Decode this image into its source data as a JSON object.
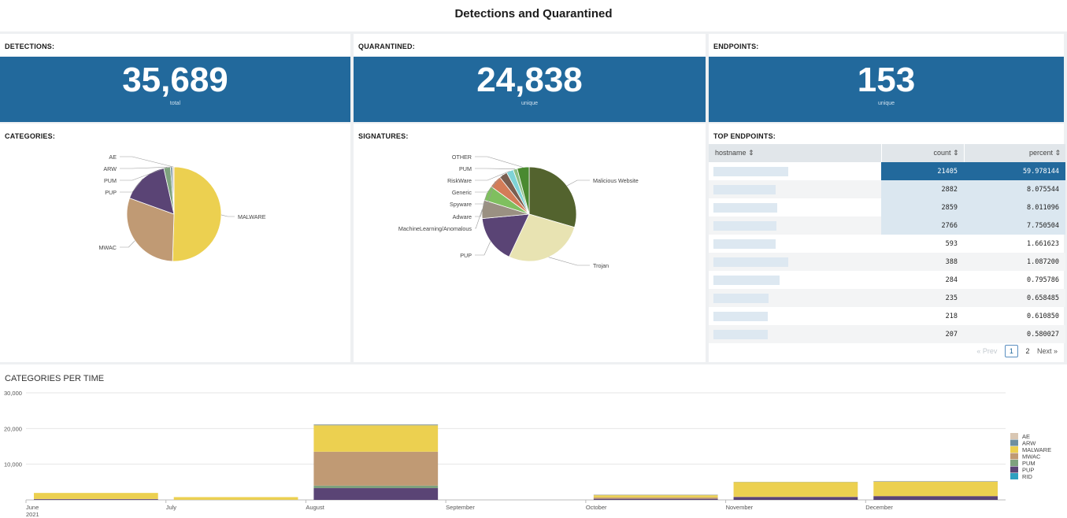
{
  "dashboard": {
    "title": "Detections and Quarantined"
  },
  "kpis": [
    {
      "label": "DETECTIONS:",
      "value": "35,689",
      "sub": "total"
    },
    {
      "label": "QUARANTINED:",
      "value": "24,838",
      "sub": "unique"
    },
    {
      "label": "ENDPOINTS:",
      "value": "153",
      "sub": "unique"
    }
  ],
  "categories_panel": {
    "title": "CATEGORIES:"
  },
  "signatures_panel": {
    "title": "SIGNATURES:"
  },
  "top_endpoints": {
    "title": "TOP ENDPOINTS:",
    "columns": [
      "hostname ⇕",
      "count ⇕",
      "percent ⇕"
    ],
    "rows": [
      {
        "count": "21405",
        "percent": "59.978144"
      },
      {
        "count": "2882",
        "percent": "8.075544"
      },
      {
        "count": "2859",
        "percent": "8.011096"
      },
      {
        "count": "2766",
        "percent": "7.750504"
      },
      {
        "count": "593",
        "percent": "1.661623"
      },
      {
        "count": "388",
        "percent": "1.087200"
      },
      {
        "count": "284",
        "percent": "0.795786"
      },
      {
        "count": "235",
        "percent": "0.658485"
      },
      {
        "count": "218",
        "percent": "0.610850"
      },
      {
        "count": "207",
        "percent": "0.580027"
      }
    ],
    "pager": {
      "prev": "« Prev",
      "page1": "1",
      "page2": "2",
      "next": "Next »"
    }
  },
  "bottom_panel": {
    "title": "CATEGORIES PER TIME"
  },
  "colors": {
    "kpi_blue": "#22699c",
    "AE": "#d9c7b3",
    "ARW": "#6f8fa0",
    "MALWARE": "#ecd050",
    "MWAC": "#c09a74",
    "PUM": "#7ea27e",
    "PUP": "#5a4475",
    "RID": "#2ea0c0"
  },
  "chart_data": [
    {
      "type": "pie",
      "title": "CATEGORIES:",
      "slices": [
        {
          "label": "MALWARE",
          "value": 50.5,
          "color": "#ecd050"
        },
        {
          "label": "MWAC",
          "value": 30.0,
          "color": "#c09a74"
        },
        {
          "label": "PUP",
          "value": 16.0,
          "color": "#5a4475"
        },
        {
          "label": "PUM",
          "value": 2.3,
          "color": "#7ea27e"
        },
        {
          "label": "ARW",
          "value": 0.7,
          "color": "#6f8fa0"
        },
        {
          "label": "AE",
          "value": 0.5,
          "color": "#d9c7b3"
        }
      ]
    },
    {
      "type": "pie",
      "title": "SIGNATURES:",
      "slices": [
        {
          "label": "Malicious Website",
          "value": 29.5,
          "color": "#53632e"
        },
        {
          "label": "Trojan",
          "value": 27.5,
          "color": "#e8e3b2"
        },
        {
          "label": "PUP",
          "value": 16.5,
          "color": "#5a4475"
        },
        {
          "label": "MachineLearning/Anomalous",
          "value": 6.3,
          "color": "#9a9082"
        },
        {
          "label": "Adware",
          "value": 5.2,
          "color": "#7fbf5f"
        },
        {
          "label": "Spyware",
          "value": 4.3,
          "color": "#d47c58"
        },
        {
          "label": "Generic",
          "value": 2.8,
          "color": "#7a5e50"
        },
        {
          "label": "RiskWare",
          "value": 2.4,
          "color": "#7fd3d6"
        },
        {
          "label": "PUM",
          "value": 1.4,
          "color": "#8dbf86"
        },
        {
          "label": "OTHER",
          "value": 4.1,
          "color": "#4a8a30"
        }
      ]
    },
    {
      "type": "bar",
      "stacked": true,
      "title": "CATEGORIES PER TIME",
      "categories": [
        "June 2021",
        "July",
        "August",
        "September",
        "October",
        "November",
        "December"
      ],
      "x_tick_labels": [
        "June",
        "July",
        "August",
        "September",
        "October",
        "November",
        "December"
      ],
      "x_year_label": "2021",
      "ylim": [
        0,
        30000
      ],
      "y_ticks": [
        10000,
        20000,
        30000
      ],
      "y_tick_labels": [
        "10,000",
        "20,000",
        "30,000"
      ],
      "series": [
        {
          "name": "PUP",
          "color": "#5a4475",
          "values": [
            200,
            0,
            3300,
            0,
            300,
            800,
            1000
          ]
        },
        {
          "name": "PUM",
          "color": "#7ea27e",
          "values": [
            0,
            0,
            700,
            0,
            0,
            0,
            0
          ]
        },
        {
          "name": "MWAC",
          "color": "#c09a74",
          "values": [
            50,
            30,
            9500,
            0,
            400,
            100,
            100
          ]
        },
        {
          "name": "MALWARE",
          "color": "#ecd050",
          "values": [
            1700,
            750,
            7400,
            0,
            600,
            4100,
            4000
          ]
        },
        {
          "name": "ARW",
          "color": "#6f8fa0",
          "values": [
            0,
            0,
            200,
            0,
            100,
            50,
            100
          ]
        },
        {
          "name": "AE",
          "color": "#d9c7b3",
          "values": [
            0,
            0,
            100,
            0,
            100,
            0,
            100
          ]
        },
        {
          "name": "RID",
          "color": "#2ea0c0",
          "values": [
            0,
            0,
            0,
            0,
            0,
            0,
            0
          ]
        }
      ],
      "legend": [
        "AE",
        "ARW",
        "MALWARE",
        "MWAC",
        "PUM",
        "PUP",
        "RID"
      ]
    }
  ]
}
